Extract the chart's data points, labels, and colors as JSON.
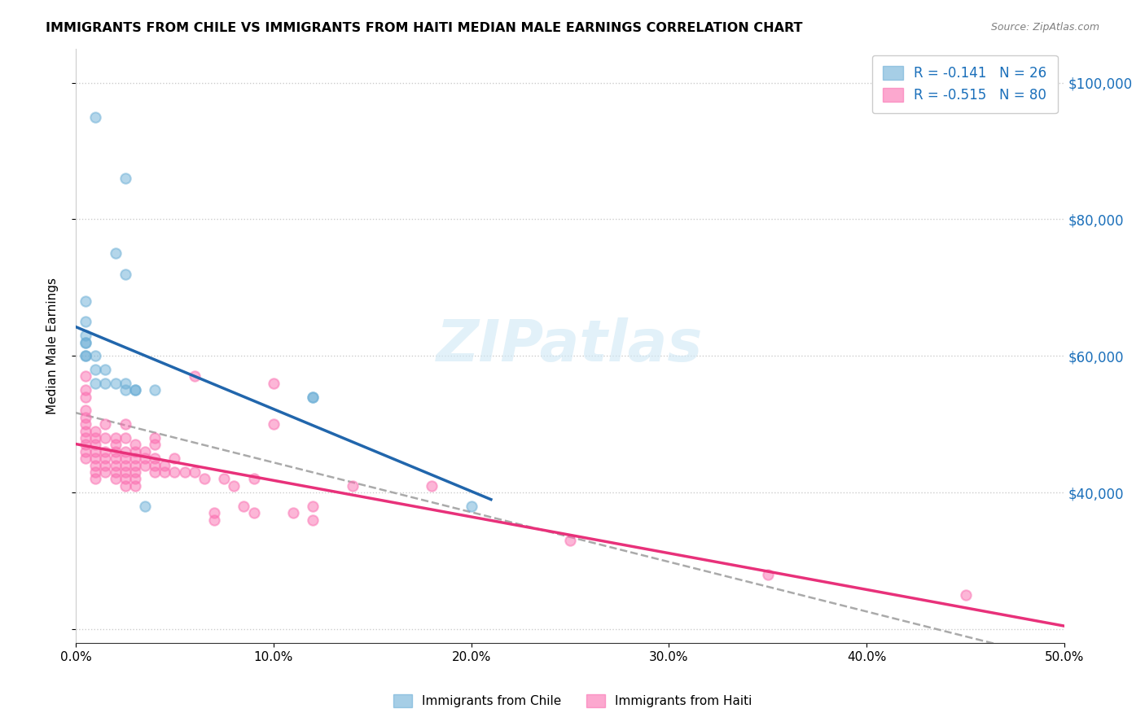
{
  "title": "IMMIGRANTS FROM CHILE VS IMMIGRANTS FROM HAITI MEDIAN MALE EARNINGS CORRELATION CHART",
  "source": "Source: ZipAtlas.com",
  "xlabel_ticks": [
    "0.0%",
    "10.0%",
    "20.0%",
    "30.0%",
    "40.0%",
    "50.0%"
  ],
  "xlabel_vals": [
    0.0,
    0.1,
    0.2,
    0.3,
    0.4,
    0.5
  ],
  "ylabel": "Median Male Earnings",
  "ylabel_ticks": [
    20000,
    40000,
    60000,
    80000,
    100000
  ],
  "ylabel_labels": [
    "",
    "$40,000",
    "$60,000",
    "$80,000",
    "$100,000"
  ],
  "xlim": [
    0.0,
    0.5
  ],
  "ylim": [
    18000,
    105000
  ],
  "chile_R": -0.141,
  "chile_N": 26,
  "haiti_R": -0.515,
  "haiti_N": 80,
  "chile_color": "#6baed6",
  "haiti_color": "#fb6eb0",
  "chile_line_color": "#2166ac",
  "haiti_line_color": "#e8317a",
  "dashed_line_color": "#aaaaaa",
  "legend_text_color": "#1a6fba",
  "watermark": "ZIPatlas",
  "chile_x": [
    0.01,
    0.025,
    0.02,
    0.025,
    0.005,
    0.005,
    0.005,
    0.005,
    0.005,
    0.005,
    0.005,
    0.01,
    0.01,
    0.015,
    0.01,
    0.015,
    0.02,
    0.025,
    0.025,
    0.03,
    0.03,
    0.12,
    0.12,
    0.035,
    0.04,
    0.2
  ],
  "chile_y": [
    95000,
    86000,
    75000,
    72000,
    68000,
    65000,
    63000,
    62000,
    62000,
    60000,
    60000,
    60000,
    58000,
    58000,
    56000,
    56000,
    56000,
    56000,
    55000,
    55000,
    55000,
    54000,
    54000,
    38000,
    55000,
    38000
  ],
  "haiti_x": [
    0.005,
    0.005,
    0.005,
    0.005,
    0.005,
    0.005,
    0.005,
    0.005,
    0.005,
    0.005,
    0.005,
    0.01,
    0.01,
    0.01,
    0.01,
    0.01,
    0.01,
    0.01,
    0.01,
    0.015,
    0.015,
    0.015,
    0.015,
    0.015,
    0.015,
    0.02,
    0.02,
    0.02,
    0.02,
    0.02,
    0.02,
    0.02,
    0.025,
    0.025,
    0.025,
    0.025,
    0.025,
    0.025,
    0.025,
    0.025,
    0.03,
    0.03,
    0.03,
    0.03,
    0.03,
    0.03,
    0.03,
    0.035,
    0.035,
    0.035,
    0.04,
    0.04,
    0.04,
    0.04,
    0.04,
    0.045,
    0.045,
    0.05,
    0.05,
    0.055,
    0.06,
    0.06,
    0.065,
    0.07,
    0.07,
    0.075,
    0.08,
    0.085,
    0.09,
    0.09,
    0.1,
    0.1,
    0.11,
    0.12,
    0.12,
    0.14,
    0.18,
    0.25,
    0.35,
    0.45
  ],
  "haiti_y": [
    57000,
    55000,
    54000,
    52000,
    51000,
    50000,
    49000,
    48000,
    47000,
    46000,
    45000,
    49000,
    48000,
    47000,
    46000,
    45000,
    44000,
    43000,
    42000,
    50000,
    48000,
    46000,
    45000,
    44000,
    43000,
    48000,
    47000,
    46000,
    45000,
    44000,
    43000,
    42000,
    50000,
    48000,
    46000,
    45000,
    44000,
    43000,
    42000,
    41000,
    47000,
    46000,
    45000,
    44000,
    43000,
    42000,
    41000,
    46000,
    45000,
    44000,
    48000,
    47000,
    45000,
    44000,
    43000,
    44000,
    43000,
    45000,
    43000,
    43000,
    57000,
    43000,
    42000,
    37000,
    36000,
    42000,
    41000,
    38000,
    42000,
    37000,
    56000,
    50000,
    37000,
    38000,
    36000,
    41000,
    41000,
    33000,
    28000,
    25000
  ]
}
